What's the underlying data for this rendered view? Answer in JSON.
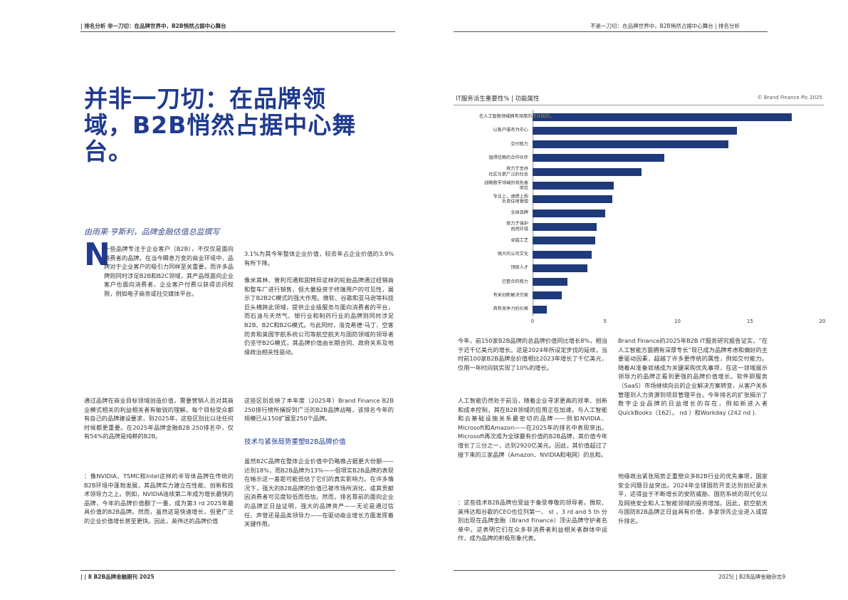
{
  "header": {
    "left": "| 排名分析 非一刀切：在品牌世界中，B2B悄然占据中心舞台",
    "right": "不是一刀切：在品牌世界中，B2B悄然占据中心舞台 | 排名分析"
  },
  "footer": {
    "left": "| | 8 B2B品牌金融期刊 2025",
    "right": "2025| | B2B品牌金融杂志9"
  },
  "article": {
    "title": "并非一刀切：在品牌领域，B2B悄然占据中心舞台。",
    "byline": "由雨果·亨斯利，品牌金融估值总监撰写",
    "dropcap": "N",
    "paragraphs": [
      "一些品牌专注于企业客户（B2B），不仅仅是面向消费者的品牌。在当今瞬息万变的商业环境中，品牌对于企业客户的吸引力同样至关重要。而许多品牌则同时涉足B2B和B2C领域，其产品既面向企业客户也面向消费者，企业客户付费以获得访问权限，例如电子商务或社交媒体平台。",
      "通过品牌在商业目标领域创造价值，需要营销人员对其商业模式相关的利益相关者有敏锐的理解。每个目标受众都有自己的品牌建设要求，到2025年，这些区别比以往任何时候都更重要。在2025年品牌金融B2B 250排名中，仅有54%的品牌是纯粹的B2B。",
      "：像NVIDIA、TSMC和Intel这样的半导体品牌在传统的B2B环境中蓬勃发展，其品牌实力建立在性能、创新和技术领导力之上。例如，NVIDIA连续第二年成为增长最快的品牌，今年的品牌价值翻了一番，成为第3 rd 2025年最具价值的B2B品牌。然而，虽然这是快速增长，但更广泛的企业价值增长甚至更快。因此，英伟达的品牌价值",
      "3.1%为其今年整体企业价值，较去年占企业价值的3.9%有所下降。",
      "像米其林、普利司通和固特异这样的轮胎品牌通过经销商和整车厂进行销售，但大量投资于终端用户的可见性，展示了B2B2C模式的强大作用。微软、谷歌和亚马逊等科技巨头横跨此领域，提供企业级服务与面向消费者的平台，而石油与天然气、银行业和制药行业的品牌则同时涉足B2B、B2C和B2G模式。与此同时，洛克希德·马丁、空客防务和英国宇航系统公司等航空航天与国防领域的领导者仍坚守B2G模式，其品牌价值由长期合同、政府关系及地缘政治相关性驱动。",
      "这些区别反映了本年度（2025年）Brand Finance B2B 250排行榜所捕捉到广泛的B2B品牌战略，该排名今年的规模已从150扩展至250个品牌。",
      "虽然B2C品牌在整体企业价值中仍略微占据更大份额——达到18%，而B2B品牌为13%——但项实B2B品牌的表现在暗示这一差距可能低估了它们的真实影响力。在许多情况下，强大的B2B品牌的价值已被市场所消化，或其贡献因消费者可见度较低而低估。然而，排名靠前的面向企业的品牌正日益证明，强大的品牌资产——无论是通过信任、声誉还是品类领导力——在驱动商业增长方面发挥着关键作用。",
      "今年，前150家B2B品牌的总品牌价值同比增长8%，相当于近千亿美元的增长。这是2024年所设定步伐的延续，当时前100家B2B品牌总价值相比2023年增长了千亿美元，仅用一年时间就实现了10%的增长。",
      "人工智能仍然处于前沿，随着企业寻求更高的效率、创新和成本控制，其在B2B领域的应用正在加速。与人工智能和云基础设施关系最密切的品牌——例如NVIDIA、Microsoft和Amazon——在2025年的排名中表现突出。Microsoft再次成为全球最有价值的B2B品牌，其价值今年增长了三分之一，达到2920亿美元。因此，其价值超过了接下来的三家品牌（Amazon、NVIDIA和电网）的总和。",
      "：这些技术B2B品牌也受益于备受尊敬的领导者。微软、英伟达和谷歌的CEO也位列第一、 st ，3 rd and 5 th 分别出现在品牌金融（Brand Finance）顶尖品牌守护者名单中。这表明它们在众多非消费者利益相关者群体中运作，成为品牌的积极形象代表。",
      "Brand Finance的2025年B2B IT服务研究报告证实，“在人工智能方面拥有深厚专长”现已成为品牌考虑和偏好的主要驱动因素，超越了许多更传统的属性，例如交付能力。随着AI准备就绪成为关键采购优先事项，在这一领域展示领导力的品牌正看到更强的品牌价值增长。软件即服务（SaaS）市场继续向云的企业解决方案转变，从客户关系管理到人力资源到项目管理平台。今年排名的扩张揭示了数字企业品牌的日益增长的存在，例如新进入者QuickBooks（162）。 nd ）和Workday (242 nd ).",
      "地缘政治紧张局势正重塑众多B2B行业的优先事项，国家安全问题日益突出。2024年全球国防开支达到创纪录水平，这得益于不断增长的安防威胁、国防系统的现代化以及网络安全和人工智能领域的投资增加。因此，航空航天与国防B2B品牌正日益具有价值，多家领先企业进入或提升排名。"
    ],
    "subheading": "技术与紧张局势重塑B2B品牌价值"
  },
  "chart_data": {
    "type": "bar",
    "orientation": "horizontal",
    "title": "IT服务派生重要性% | 功能属性",
    "source": "© Brand Finance Plc 2025",
    "categories": [
      "在人工智能领域拥有深厚的专业知识。",
      "以客户服务为中心",
      "交付能力",
      "值得信赖的合作伙伴",
      "致力于支持\n社区与更广泛的社会",
      "战略数字领域的领先者\n地位",
      "专业上，道德上和\n负责任地管理",
      "全球品牌",
      "致力于保护\n自然环境",
      "卓越工艺",
      "强大的公司文化",
      "顶级人才",
      "已整合的能力",
      "有采创新解决方案",
      "具有竞争力的价格"
    ],
    "values": [
      17.9,
      14.1,
      13.5,
      9.1,
      7.5,
      5.6,
      5.5,
      5.0,
      4.4,
      4.3,
      4.1,
      3.8,
      2.4,
      2.0,
      1.0
    ],
    "color": "#1f3a7a",
    "xlim": [
      0,
      20
    ],
    "xticks": [
      0,
      5,
      10,
      15,
      20
    ]
  }
}
